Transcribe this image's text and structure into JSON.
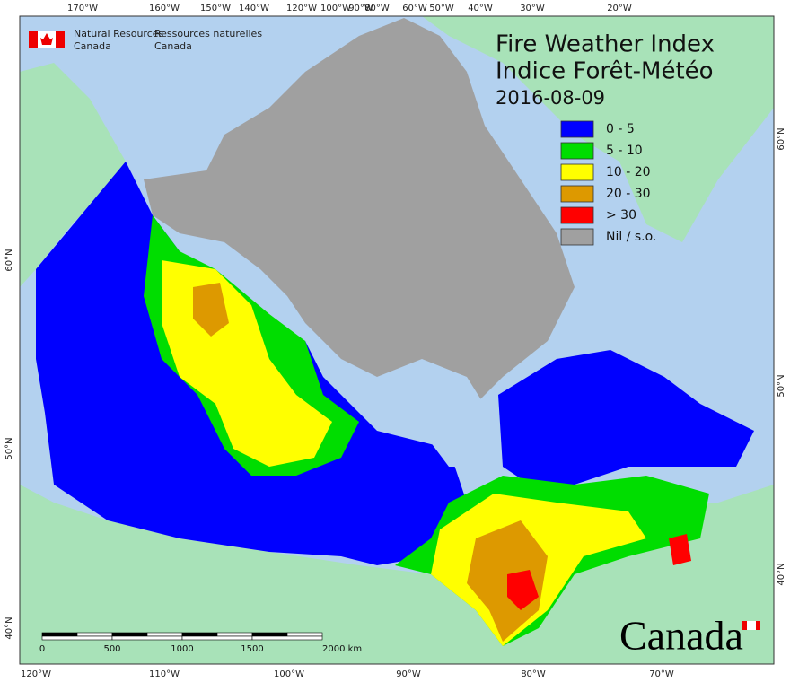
{
  "header": {
    "title_en": "Fire Weather Index",
    "title_fr": "Indice Forêt-Météo",
    "date": "2016-08-09"
  },
  "agency": {
    "en": [
      "Natural Resources",
      "Canada"
    ],
    "fr": [
      "Ressources naturelles",
      "Canada"
    ]
  },
  "legend": [
    {
      "label": "0 - 5",
      "color": "#0000ff"
    },
    {
      "label": "5 - 10",
      "color": "#00dd00"
    },
    {
      "label": "10 - 20",
      "color": "#ffff00"
    },
    {
      "label": "20 - 30",
      "color": "#dd9900"
    },
    {
      "label": "> 30",
      "color": "#ff0000"
    },
    {
      "label": "Nil / s.o.",
      "color": "#a0a0a0"
    }
  ],
  "graticule": {
    "top": [
      "170°W",
      "160°W",
      "150°W",
      "140°W",
      "120°W",
      "100°W",
      "90°W",
      "80°W",
      "60°W",
      "50°W",
      "40°W",
      "30°W",
      "20°W"
    ],
    "bottom": [
      "120°W",
      "110°W",
      "100°W",
      "90°W",
      "80°W",
      "70°W"
    ],
    "left": [
      "60°N",
      "50°N",
      "40°N"
    ],
    "right": [
      "60°N",
      "50°N",
      "40°N"
    ]
  },
  "scale_bar": {
    "labels": [
      "0",
      "500",
      "1000",
      "1500",
      "2000 km"
    ]
  },
  "wordmark": "Canada"
}
